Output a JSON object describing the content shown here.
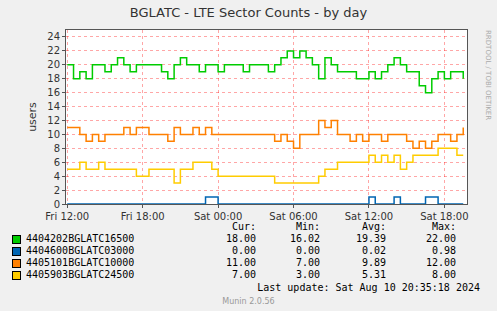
{
  "chart_data": {
    "type": "line",
    "title": "BGLATC - LTE Sector Counts - by day",
    "y_label": "users",
    "x": [
      12,
      12.5,
      13,
      13.5,
      14,
      14.5,
      15,
      15.5,
      16,
      16.5,
      17,
      17.5,
      18,
      18.5,
      19,
      19.5,
      20,
      20.5,
      21,
      21.5,
      22,
      22.5,
      23,
      23.5,
      24,
      24.5,
      25,
      25.5,
      26,
      26.5,
      27,
      27.5,
      28,
      28.5,
      29,
      29.5,
      30,
      30.5,
      31,
      31.5,
      32,
      32.5,
      33,
      33.5,
      34,
      34.5,
      35,
      35.5,
      36,
      36.5,
      37,
      37.5,
      38,
      38.5,
      39,
      39.5,
      40,
      40.5,
      41,
      41.5,
      42,
      42.5,
      43,
      43.5
    ],
    "xlim": [
      11.9,
      43.8
    ],
    "xticks": [
      {
        "value": 12,
        "label": "Fri 12:00"
      },
      {
        "value": 18,
        "label": "Fri 18:00"
      },
      {
        "value": 24,
        "label": "Sat 00:00"
      },
      {
        "value": 30,
        "label": "Sat 06:00"
      },
      {
        "value": 36,
        "label": "Sat 12:00"
      },
      {
        "value": 42,
        "label": "Sat 18:00"
      }
    ],
    "ylim": [
      0,
      25
    ],
    "yticks": [
      0,
      2,
      4,
      6,
      8,
      10,
      12,
      14,
      16,
      18,
      20,
      22,
      24
    ],
    "grid": true,
    "legend": "bottom",
    "stats_headers": [
      "Cur:",
      "Min:",
      "Avg:",
      "Max:"
    ],
    "series": [
      {
        "name": "4404202BGLATC16500",
        "color": "#00CC00",
        "stats": [
          "18.00",
          "16.02",
          "19.39",
          "22.00"
        ],
        "values": [
          20,
          18,
          19,
          18,
          20,
          20,
          19,
          20,
          21,
          20,
          19,
          20,
          20,
          20,
          20,
          19,
          18,
          20,
          21,
          20,
          20,
          19,
          20,
          20,
          19,
          20,
          20,
          20,
          19,
          20,
          20,
          20,
          19,
          20,
          21,
          22,
          21,
          22,
          21,
          20,
          18,
          21,
          20,
          19,
          19,
          19,
          18,
          18,
          19,
          18,
          19,
          20,
          21,
          20,
          19,
          19,
          17,
          16,
          18,
          19,
          18,
          19,
          19,
          18
        ]
      },
      {
        "name": "4404600BGLATC03000",
        "color": "#0066B3",
        "stats": [
          "0.00",
          "0.00",
          "0.02",
          "0.98"
        ],
        "values": [
          0,
          0,
          0,
          0,
          0,
          0,
          0,
          0,
          0,
          0,
          0,
          0,
          0,
          0,
          0,
          0,
          0,
          0,
          0,
          0,
          0,
          0,
          1,
          1,
          0,
          0,
          0,
          0,
          0,
          0,
          0,
          0,
          0,
          0,
          0,
          0,
          0,
          0,
          0,
          0,
          0,
          0,
          0,
          0,
          0,
          0,
          0,
          0,
          1,
          0,
          0,
          0,
          1,
          0,
          0,
          0,
          0,
          1,
          1,
          0,
          0,
          0,
          0,
          0
        ]
      },
      {
        "name": "4405101BGLATC10000",
        "color": "#FF8000",
        "stats": [
          "11.00",
          "7.00",
          "9.89",
          "12.00"
        ],
        "values": [
          11,
          11,
          10,
          9,
          10,
          9,
          10,
          10,
          10,
          11,
          10,
          11,
          11,
          10,
          10,
          10,
          9,
          11,
          10,
          10,
          11,
          10,
          11,
          10,
          10,
          10,
          10,
          10,
          10,
          10,
          10,
          10,
          10,
          9,
          10,
          9,
          8,
          10,
          10,
          10,
          12,
          11,
          12,
          10,
          10,
          9,
          10,
          9,
          10,
          10,
          9,
          10,
          10,
          10,
          9,
          8,
          9,
          8,
          9,
          10,
          10,
          9,
          10,
          11
        ]
      },
      {
        "name": "4405903BGLATC24500",
        "color": "#FFCC00",
        "stats": [
          "7.00",
          "3.00",
          "5.31",
          "8.00"
        ],
        "values": [
          5,
          5,
          6,
          5,
          5,
          6,
          5,
          5,
          5,
          5,
          5,
          4,
          4,
          5,
          5,
          5,
          5,
          3,
          5,
          5,
          6,
          6,
          6,
          5,
          4,
          4,
          4,
          4,
          4,
          4,
          4,
          4,
          4,
          3,
          3,
          3,
          3,
          3,
          3,
          3,
          4,
          5,
          5,
          6,
          6,
          6,
          6,
          6,
          7,
          6,
          7,
          6,
          7,
          5,
          6,
          7,
          7,
          7,
          7,
          8,
          8,
          8,
          7,
          7
        ]
      }
    ],
    "last_update": "Last update: Sat Aug 10 20:35:18 2024",
    "footer": "Munin 2.0.56",
    "side_label": "RRDTOOL / TOBI OETIKER"
  }
}
